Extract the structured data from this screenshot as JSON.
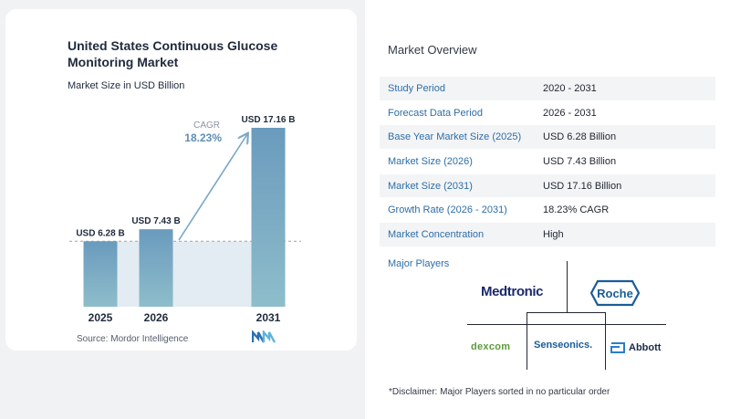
{
  "chart_data": {
    "type": "bar",
    "title": "United States Continuous Glucose Monitoring Market",
    "subtitle": "Market Size in USD Billion",
    "categories": [
      "2025",
      "2026",
      "2031"
    ],
    "values": [
      6.28,
      7.43,
      17.16
    ],
    "data_labels": [
      "USD 6.28 B",
      "USD 7.43 B",
      "USD 17.16 B"
    ],
    "cagr_label": "CAGR",
    "cagr_value": "18.23%",
    "ylim": [
      0,
      17.16
    ],
    "colors": {
      "bar_top": "#6a9bbd",
      "bar_bottom": "#8ebdcb",
      "band": "#e3ecf3",
      "arrow": "#7aa7c4",
      "cagr_text": "#5e8fb4"
    }
  },
  "source": "Source:  Mordor Intelligence",
  "overview": {
    "title": "Market Overview",
    "rows": [
      {
        "label": "Study Period",
        "value": "2020 - 2031"
      },
      {
        "label": "Forecast Data Period",
        "value": "2026 - 2031"
      },
      {
        "label": "Base Year Market Size (2025)",
        "value": "USD 6.28 Billion"
      },
      {
        "label": "Market Size (2026)",
        "value": "USD 7.43 Billion"
      },
      {
        "label": "Market Size (2031)",
        "value": "USD 17.16 Billion"
      },
      {
        "label": "Growth Rate (2026 - 2031)",
        "value": "18.23% CAGR"
      },
      {
        "label": "Market Concentration",
        "value": "High"
      }
    ]
  },
  "players": {
    "title": "Major Players",
    "names": [
      "Medtronic",
      "Roche",
      "dexcom",
      "Senseonics.",
      "Abbott"
    ],
    "icons": [
      "mordor-intelligence-logo-icon",
      "roche-hexagon-icon",
      "abbott-logo-icon"
    ]
  },
  "disclaimer": "*Disclaimer: Major Players sorted in no particular order"
}
